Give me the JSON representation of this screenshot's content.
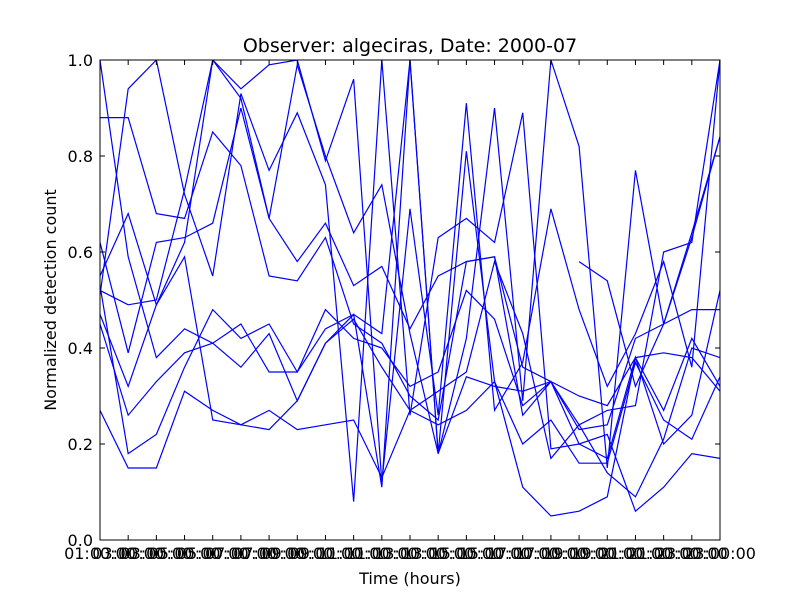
{
  "chart_data": {
    "type": "line",
    "title": "Observer: algeciras, Date: 2000-07",
    "xlabel": "Time (hours)",
    "ylabel": "Normalized detection count",
    "xlim": [
      1,
      23
    ],
    "ylim": [
      0.0,
      1.0
    ],
    "x_ticks": [
      {
        "value": 1,
        "label": "01:00:00"
      },
      {
        "value": 2,
        "label": "03:00:00"
      },
      {
        "value": 3,
        "label": "03:00:00"
      },
      {
        "value": 4,
        "label": "05:00:00"
      },
      {
        "value": 5,
        "label": "05:00:00"
      },
      {
        "value": 6,
        "label": "07:00:00"
      },
      {
        "value": 7,
        "label": "07:00:00"
      },
      {
        "value": 8,
        "label": "09:00:00"
      },
      {
        "value": 9,
        "label": "09:00:00"
      },
      {
        "value": 10,
        "label": "11:00:00"
      },
      {
        "value": 11,
        "label": "11:00:00"
      },
      {
        "value": 12,
        "label": "13:00:00"
      },
      {
        "value": 13,
        "label": "13:00:00"
      },
      {
        "value": 14,
        "label": "15:00:00"
      },
      {
        "value": 15,
        "label": "15:00:00"
      },
      {
        "value": 16,
        "label": "17:00:00"
      },
      {
        "value": 17,
        "label": "17:00:00"
      },
      {
        "value": 18,
        "label": "19:00:00"
      },
      {
        "value": 19,
        "label": "19:00:00"
      },
      {
        "value": 20,
        "label": "21:00:00"
      },
      {
        "value": 21,
        "label": "21:00:00"
      },
      {
        "value": 22,
        "label": "23:00:00"
      },
      {
        "value": 23,
        "label": "23:00:00"
      }
    ],
    "y_ticks": [
      "0.0",
      "0.2",
      "0.4",
      "0.6",
      "0.8",
      "1.0"
    ],
    "x": [
      1,
      2,
      3,
      4,
      5,
      6,
      7,
      8,
      9,
      10,
      11,
      12,
      13,
      14,
      15,
      16,
      17,
      18,
      19,
      20,
      21,
      22,
      23
    ],
    "color": "#0000ff",
    "series": [
      {
        "values": [
          1.0,
          0.59,
          0.38,
          0.44,
          0.41,
          0.45,
          0.35,
          0.35,
          0.48,
          0.42,
          0.4,
          0.32,
          0.35,
          0.52,
          0.46,
          0.28,
          0.33,
          0.3,
          0.28,
          0.38,
          0.39,
          0.38,
          0.31
        ]
      },
      {
        "values": [
          0.88,
          0.88,
          0.68,
          0.67,
          0.85,
          0.78,
          0.55,
          0.54,
          0.63,
          0.45,
          0.41,
          0.3,
          0.25,
          0.58,
          0.59,
          0.36,
          0.33,
          0.24,
          0.27,
          0.28,
          0.6,
          0.62,
          1.0
        ]
      },
      {
        "values": [
          0.27,
          0.15,
          0.15,
          0.31,
          0.27,
          0.24,
          0.27,
          0.23,
          0.24,
          0.25,
          0.13,
          0.27,
          0.24,
          0.27,
          0.33,
          0.2,
          0.25,
          0.16,
          0.16,
          0.37,
          0.25,
          0.21,
          0.34
        ]
      },
      {
        "values": [
          0.45,
          0.26,
          0.33,
          0.39,
          0.41,
          0.36,
          0.43,
          0.29,
          0.41,
          0.46,
          0.36,
          0.27,
          0.31,
          0.35,
          0.58,
          0.43,
          0.17,
          0.24,
          0.14,
          0.09,
          0.21,
          0.4,
          0.38
        ]
      },
      {
        "values": [
          0.53,
          0.18,
          0.22,
          0.36,
          0.48,
          0.42,
          0.45,
          0.35,
          0.44,
          0.47,
          0.43,
          1.0,
          0.18,
          0.34,
          0.32,
          0.31,
          0.33,
          0.2,
          0.22,
          0.06,
          0.11,
          0.18,
          0.17
        ]
      },
      {
        "values": [
          0.62,
          0.39,
          0.62,
          0.63,
          0.66,
          0.9,
          0.67,
          0.58,
          0.66,
          0.53,
          0.57,
          0.44,
          0.55,
          0.58,
          0.59,
          0.26,
          0.33,
          0.23,
          0.24,
          0.42,
          0.45,
          0.48,
          0.48
        ]
      },
      {
        "values": [
          0.47,
          0.32,
          0.49,
          0.59,
          0.25,
          0.24,
          0.23,
          0.29,
          0.41,
          0.47,
          0.11,
          1.0,
          0.18,
          0.81,
          0.33,
          0.11,
          0.05,
          0.06,
          0.09,
          0.38,
          0.2,
          0.26,
          0.52
        ]
      },
      {
        "values": [
          0.51,
          0.94,
          1.0,
          0.72,
          0.55,
          0.93,
          0.77,
          0.89,
          0.74,
          0.08,
          1.0,
          0.26,
          0.63,
          0.67,
          0.62,
          0.89,
          0.19,
          0.2,
          0.17,
          0.38,
          0.27,
          0.42,
          0.32
        ]
      },
      {
        "values": [
          0.52,
          0.49,
          0.5,
          0.73,
          1.0,
          0.94,
          0.99,
          1.0,
          0.79,
          0.96,
          0.12,
          0.69,
          0.26,
          0.91,
          0.27,
          0.37,
          0.69,
          0.48,
          0.32,
          0.43,
          0.58,
          0.36,
          1.0
        ]
      },
      {
        "values": [
          0.55,
          0.68,
          0.49,
          0.62,
          1.0,
          0.92,
          0.67,
          0.99,
          0.8,
          0.64,
          0.74,
          0.43,
          0.18,
          0.42,
          0.9,
          0.29,
          1.0,
          0.82,
          0.15,
          0.77,
          0.45,
          0.64,
          0.84
        ]
      },
      {
        "values": [
          null,
          null,
          null,
          null,
          null,
          null,
          null,
          null,
          null,
          null,
          null,
          null,
          null,
          null,
          null,
          null,
          null,
          0.58,
          0.54,
          0.32,
          0.45,
          0.63,
          0.84
        ]
      }
    ]
  }
}
